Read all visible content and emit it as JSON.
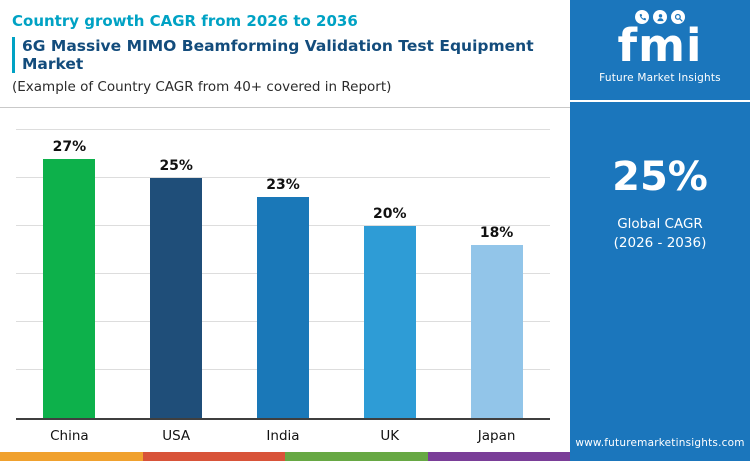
{
  "header": {
    "title": "Country growth CAGR from 2026 to 2036",
    "subtitle": "6G Massive MIMO Beamforming Validation Test Equipment Market",
    "note": "(Example of Country CAGR from 40+ covered in Report)"
  },
  "chart_data": {
    "type": "bar",
    "title": "Country growth CAGR from 2026 to 2036",
    "categories": [
      "China",
      "USA",
      "India",
      "UK",
      "Japan"
    ],
    "values": [
      27,
      25,
      23,
      20,
      18
    ],
    "labels": [
      "27%",
      "25%",
      "23%",
      "20%",
      "18%"
    ],
    "bar_colors": [
      "#0db14b",
      "#1f4e79",
      "#1a78b8",
      "#2e9cd6",
      "#92c5e9"
    ],
    "ylim": [
      0,
      30
    ],
    "grid_step": 5,
    "grid": true,
    "legend": "none",
    "xlabel": "",
    "ylabel": ""
  },
  "sidebar": {
    "logo": {
      "text": "fmi",
      "tagline": "Future Market Insights",
      "icons": [
        "phone-icon",
        "person-icon",
        "search-icon"
      ]
    },
    "stat": {
      "value": "25%",
      "label": "Global CAGR",
      "period": "(2026 - 2036)"
    },
    "website": "www.futuremarketinsights.com"
  },
  "footer_strip": {
    "colors": [
      "#f0a12e",
      "#d85339",
      "#67a844",
      "#7a3e98"
    ]
  },
  "theme": {
    "title_teal": "#00a2c4",
    "subtitle_navy": "#134c7c",
    "sidebar_blue": "#1b76bc",
    "axis_color": "#3f3f3f"
  }
}
